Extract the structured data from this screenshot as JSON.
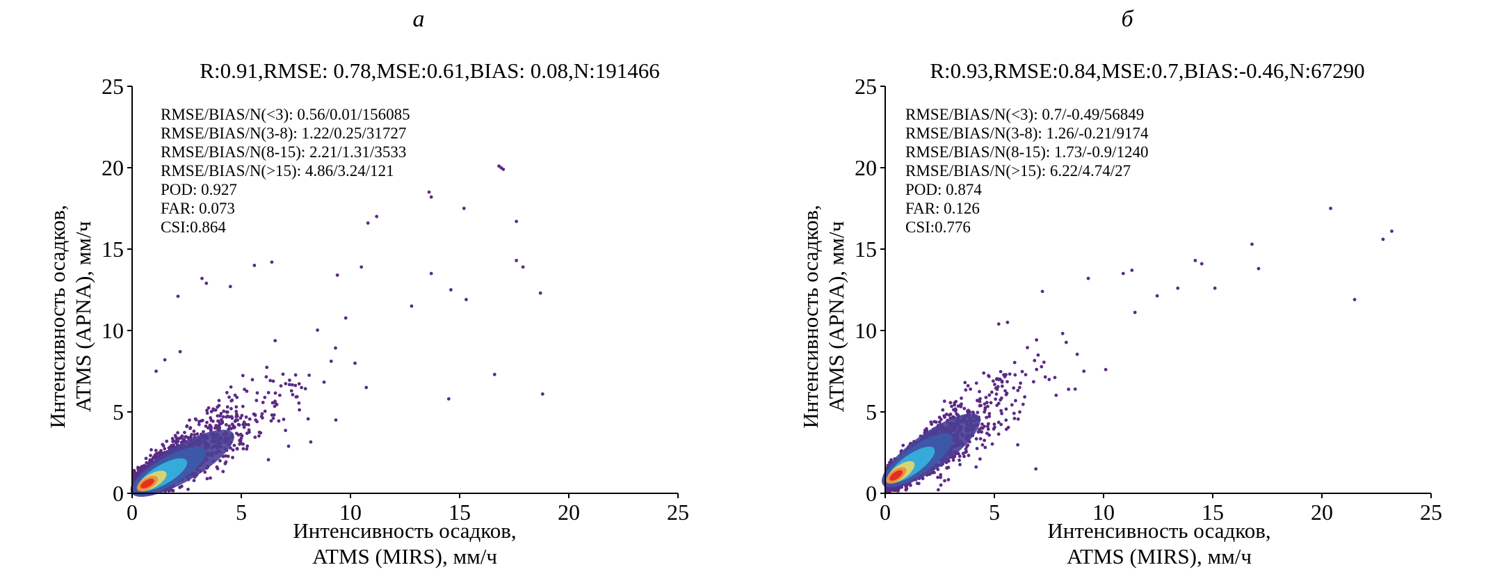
{
  "chart_data": [
    {
      "type": "scatter",
      "panel_letter": "а",
      "title": "R:0.91,RMSE: 0.78,MSE:0.61,BIAS: 0.08,N:191466",
      "xlabel": [
        "Интенсивность осадков,",
        "ATMS (MIRS), мм/ч"
      ],
      "ylabel": [
        "Интенсивность осадков,",
        "ATMS (APNA), мм/ч"
      ],
      "xlim": [
        0,
        25
      ],
      "ylim": [
        0,
        25
      ],
      "xticks": [
        0,
        5,
        10,
        15,
        20,
        25
      ],
      "yticks": [
        0,
        5,
        10,
        15,
        20,
        25
      ],
      "stats": [
        "RMSE/BIAS/N(<3): 0.56/0.01/156085",
        "RMSE/BIAS/N(3-8): 1.22/0.25/31727",
        "RMSE/BIAS/N(8-15): 2.21/1.31/3533",
        "RMSE/BIAS/N(>15): 4.86/3.24/121",
        "POD: 0.927",
        "FAR: 0.073",
        "CSI:0.864"
      ],
      "cloud": {
        "slope": 0.78,
        "intercept": 0.35,
        "x_mean": 1.6,
        "x_max": 12,
        "density_peak": [
          0.7,
          0.6
        ]
      },
      "sample_points": [
        [
          16.8,
          20.1
        ],
        [
          17.0,
          19.9
        ],
        [
          16.9,
          20.0
        ],
        [
          13.6,
          18.5
        ],
        [
          13.7,
          18.2
        ],
        [
          15.2,
          17.5
        ],
        [
          17.6,
          16.7
        ],
        [
          11.2,
          17.0
        ],
        [
          10.8,
          16.6
        ],
        [
          17.6,
          14.3
        ],
        [
          17.9,
          13.9
        ],
        [
          18.7,
          12.3
        ],
        [
          18.8,
          6.1
        ],
        [
          16.6,
          7.3
        ],
        [
          14.5,
          5.8
        ],
        [
          5.6,
          14.0
        ],
        [
          6.4,
          14.2
        ],
        [
          3.2,
          13.2
        ],
        [
          3.4,
          12.9
        ],
        [
          4.5,
          12.7
        ],
        [
          2.1,
          12.1
        ],
        [
          2.2,
          8.7
        ],
        [
          1.5,
          8.2
        ],
        [
          1.1,
          7.5
        ],
        [
          13.7,
          13.5
        ],
        [
          14.6,
          12.5
        ],
        [
          15.3,
          11.9
        ],
        [
          12.8,
          11.5
        ],
        [
          10.5,
          13.9
        ],
        [
          9.4,
          13.4
        ]
      ]
    },
    {
      "type": "scatter",
      "panel_letter": "б",
      "title": "R:0.93,RMSE:0.84,MSE:0.7,BIAS:-0.46,N:67290",
      "xlabel": [
        "Интенсивность осадков,",
        "ATMS (MIRS), мм/ч"
      ],
      "ylabel": [
        "Интенсивность осадков,",
        "ATMS (APNA), мм/ч"
      ],
      "xlim": [
        0,
        25
      ],
      "ylim": [
        0,
        25
      ],
      "xticks": [
        0,
        5,
        10,
        15,
        20,
        25
      ],
      "yticks": [
        0,
        5,
        10,
        15,
        20,
        25
      ],
      "stats": [
        "RMSE/BIAS/N(<3): 0.7/-0.49/56849",
        "RMSE/BIAS/N(3-8): 1.26/-0.21/9174",
        "RMSE/BIAS/N(8-15): 1.73/-0.9/1240",
        "RMSE/BIAS/N(>15): 6.22/4.74/27",
        "POD: 0.874",
        "FAR: 0.126",
        "CSI:0.776"
      ],
      "cloud": {
        "slope": 0.95,
        "intercept": 0.6,
        "x_mean": 1.5,
        "x_max": 8.5,
        "density_peak": [
          0.5,
          1.1
        ]
      },
      "sample_points": [
        [
          20.4,
          17.5
        ],
        [
          23.2,
          16.1
        ],
        [
          22.8,
          15.6
        ],
        [
          16.8,
          15.3
        ],
        [
          17.1,
          13.8
        ],
        [
          21.5,
          11.9
        ],
        [
          6.9,
          1.5
        ],
        [
          14.5,
          14.1
        ],
        [
          14.2,
          14.3
        ],
        [
          13.4,
          12.6
        ],
        [
          15.1,
          12.6
        ],
        [
          11.3,
          13.7
        ],
        [
          10.9,
          13.5
        ],
        [
          9.3,
          13.2
        ],
        [
          7.2,
          12.4
        ],
        [
          5.2,
          10.4
        ],
        [
          5.6,
          10.5
        ],
        [
          8.7,
          6.4
        ],
        [
          9.1,
          7.5
        ],
        [
          10.1,
          7.6
        ]
      ]
    }
  ],
  "colors": {
    "low": "#5b2a86",
    "mid1": "#3b5ba8",
    "mid2": "#35b5e0",
    "mid3": "#e8d866",
    "high": "#e3261c"
  }
}
